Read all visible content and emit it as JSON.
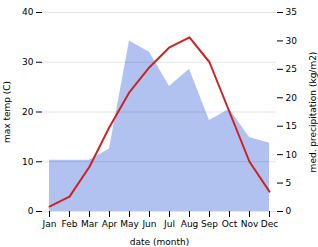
{
  "chart_data": {
    "type": "line",
    "xlabel": "date (month)",
    "ylabel": "max temp (C)",
    "y2label": "med. precipitation (kg/m2)",
    "categories": [
      "Jan",
      "Feb",
      "Mar",
      "Apr",
      "May",
      "Jun",
      "Jul",
      "Aug",
      "Sep",
      "Oct",
      "Nov",
      "Dec"
    ],
    "series": [
      {
        "type": "area",
        "axis": "y2",
        "color": "#aabbee",
        "values": [
          9,
          9,
          9,
          11,
          30,
          28,
          22,
          25,
          16,
          18,
          13,
          12
        ]
      },
      {
        "type": "line",
        "color": "#cc2222",
        "values": [
          1,
          3,
          9,
          17,
          24,
          29,
          33,
          35,
          30,
          20,
          10,
          4
        ]
      }
    ],
    "ylim": [
      0,
      40
    ],
    "yticks": [
      0,
      10,
      20,
      30,
      40
    ],
    "y2lim": [
      0,
      35
    ],
    "y2ticks": [
      0,
      5,
      10,
      15,
      20,
      25,
      30,
      35
    ],
    "grid": true
  }
}
